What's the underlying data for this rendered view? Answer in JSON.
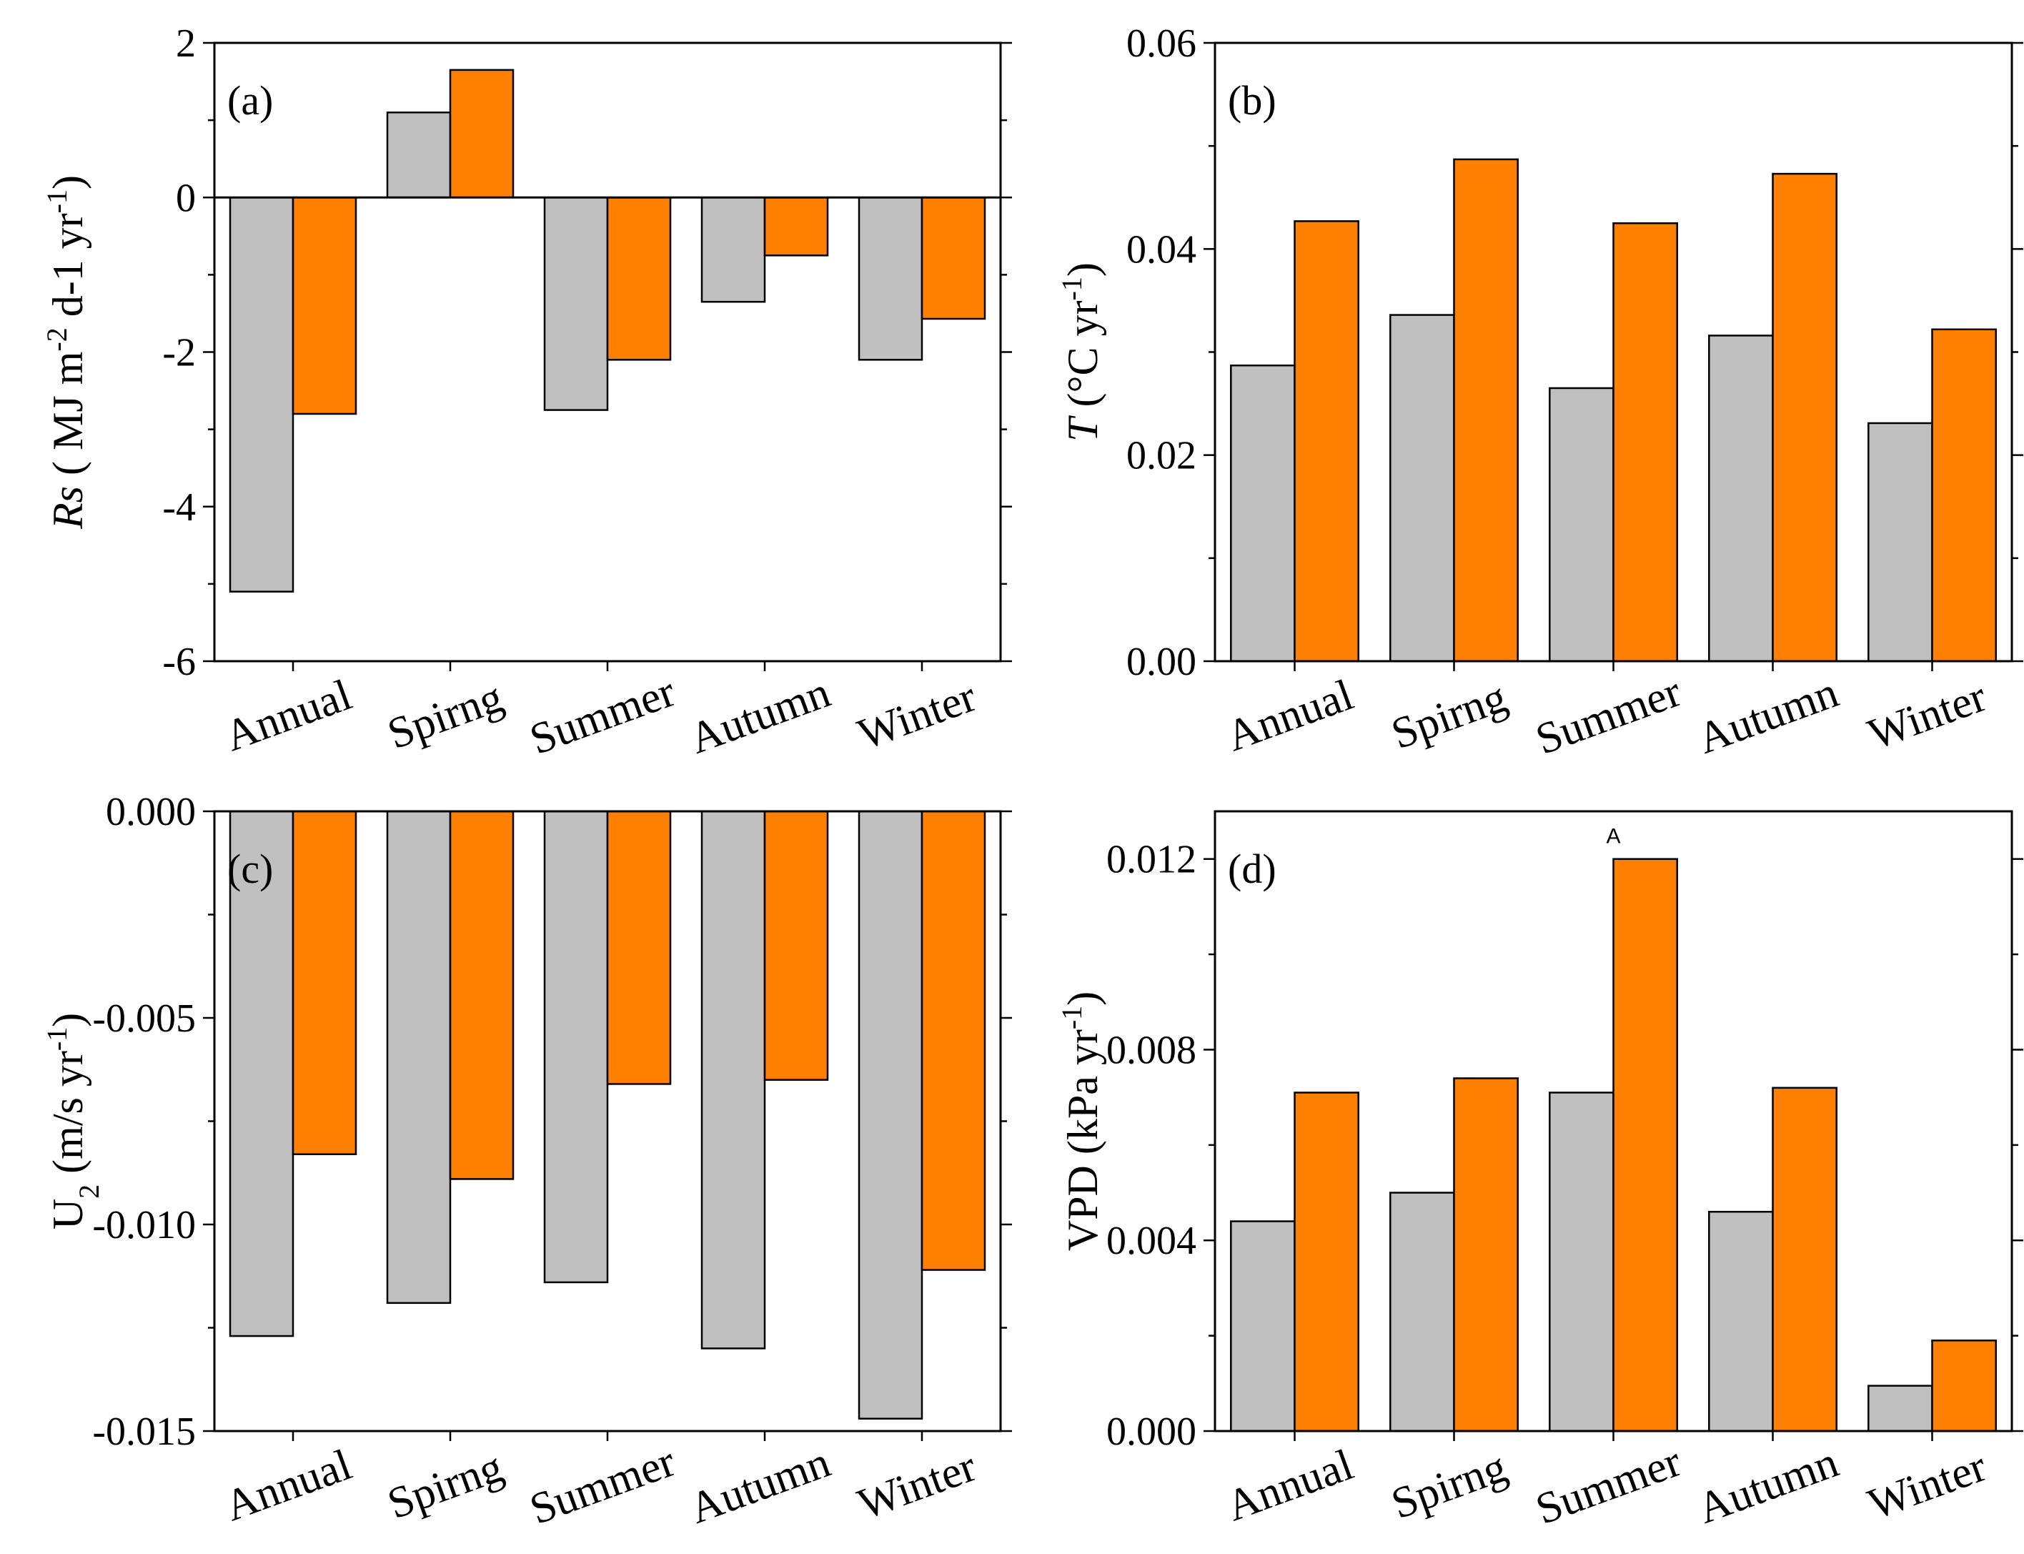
{
  "colors": {
    "series1": "#c0c0c0",
    "series2": "#ff7f00",
    "frame": "#000000"
  },
  "chart_data": [
    {
      "id": "a",
      "type": "bar",
      "panel_label": "(a)",
      "categories": [
        "Annual",
        "Spirng",
        "Summer",
        "Autumn",
        "Winter"
      ],
      "series": [
        {
          "name": "series1",
          "values": [
            -5.1,
            1.1,
            -2.75,
            -1.35,
            -2.1
          ]
        },
        {
          "name": "series2",
          "values": [
            -2.8,
            1.65,
            -2.1,
            -0.75,
            -1.57
          ]
        }
      ],
      "ylim": [
        -6,
        2
      ],
      "yticks": [
        2,
        0,
        -2,
        -4,
        -6
      ],
      "ytick_labels": [
        "2",
        "0",
        "-2",
        "-4",
        "-6"
      ],
      "ylabel": {
        "italic": "Rs",
        "plain": " ( MJ m",
        "sup1": "-2",
        "mid": " d-1 yr",
        "sup2": "-1",
        "end": ")"
      }
    },
    {
      "id": "b",
      "type": "bar",
      "panel_label": "(b)",
      "categories": [
        "Annual",
        "Spirng",
        "Summer",
        "Autumn",
        "Winter"
      ],
      "series": [
        {
          "name": "series1",
          "values": [
            0.0287,
            0.0336,
            0.0265,
            0.0316,
            0.0231
          ]
        },
        {
          "name": "series2",
          "values": [
            0.0427,
            0.0487,
            0.0425,
            0.0473,
            0.0322
          ]
        }
      ],
      "ylim": [
        0,
        0.06
      ],
      "yticks": [
        0.06,
        0.04,
        0.02,
        0
      ],
      "ytick_labels": [
        "0.06",
        "0.04",
        "0.02",
        "0.00"
      ],
      "ylabel": {
        "italic": "T",
        "plain": " (°C yr",
        "sup1": "-1",
        "mid": "",
        "sup2": "",
        "end": ")"
      }
    },
    {
      "id": "c",
      "type": "bar",
      "panel_label": "(c)",
      "categories": [
        "Annual",
        "Spirng",
        "Summer",
        "Autumn",
        "Winter"
      ],
      "series": [
        {
          "name": "series1",
          "values": [
            -0.0127,
            -0.0119,
            -0.0114,
            -0.013,
            -0.0147
          ]
        },
        {
          "name": "series2",
          "values": [
            -0.0083,
            -0.0089,
            -0.0066,
            -0.0065,
            -0.0111
          ]
        }
      ],
      "ylim": [
        -0.015,
        0
      ],
      "yticks": [
        0,
        -0.005,
        -0.01,
        -0.015
      ],
      "ytick_labels": [
        "0.000",
        "-0.005",
        "-0.010",
        "-0.015"
      ],
      "ylabel": {
        "italic": "",
        "plain": "U",
        "sub1": "2",
        "mid": " (m/s yr",
        "sup2": "-1",
        "end": ")"
      }
    },
    {
      "id": "d",
      "type": "bar",
      "panel_label": "(d)",
      "categories": [
        "Annual",
        "Spirng",
        "Summer",
        "Autumn",
        "Winter"
      ],
      "series": [
        {
          "name": "series1",
          "values": [
            0.0044,
            0.005,
            0.0071,
            0.0046,
            0.00095
          ]
        },
        {
          "name": "series2",
          "values": [
            0.0071,
            0.0074,
            0.012,
            0.0072,
            0.0019
          ]
        }
      ],
      "ylim": [
        0,
        0.013
      ],
      "yticks": [
        0.012,
        0.008,
        0.004,
        0
      ],
      "ytick_labels": [
        "0.012",
        "0.008",
        "0.004",
        "0.000"
      ],
      "ylabel": {
        "italic": "",
        "plain": "VPD (kPa yr",
        "sup1": "-1",
        "mid": "",
        "sup2": "",
        "end": ")"
      },
      "annotation": {
        "text": "A",
        "category_index": 2
      }
    }
  ]
}
